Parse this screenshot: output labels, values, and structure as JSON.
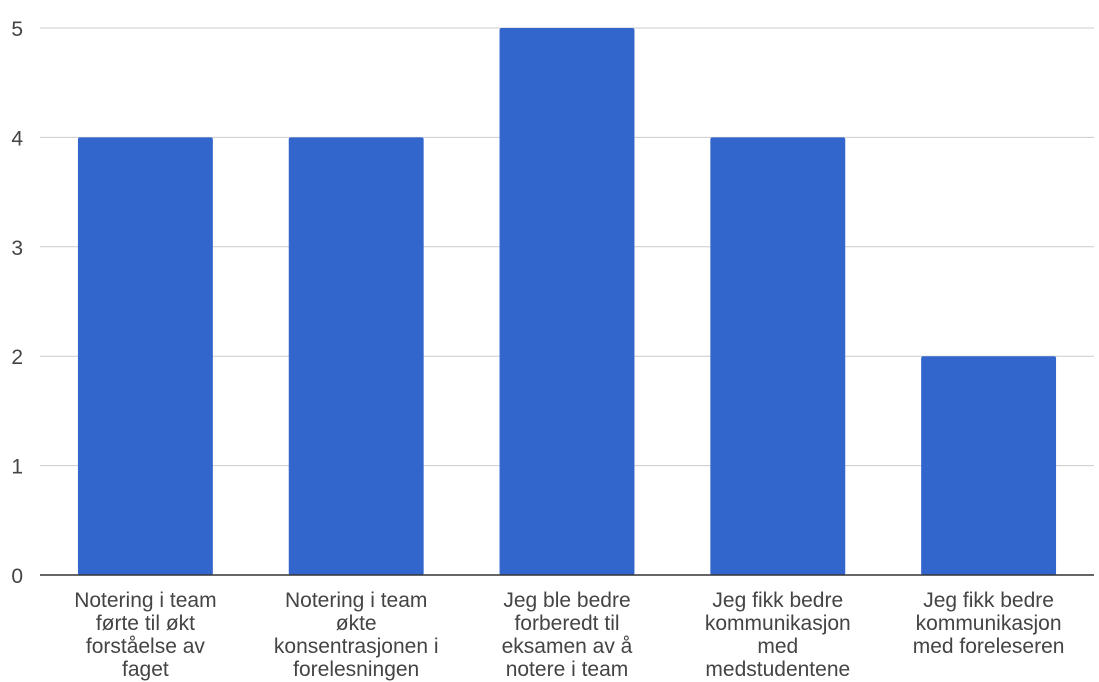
{
  "chart_data": {
    "type": "bar",
    "title": "",
    "xlabel": "",
    "ylabel": "",
    "ylim": [
      0,
      5
    ],
    "yticks": [
      0,
      1,
      2,
      3,
      4,
      5
    ],
    "grid": true,
    "legend": "none",
    "categories": [
      [
        "Notering i team",
        "førte til økt",
        "forståelse av",
        "faget"
      ],
      [
        "Notering i team",
        "økte",
        "konsentrasjonen i",
        "forelesningen"
      ],
      [
        "Jeg ble bedre",
        "forberedt til",
        "eksamen av å",
        "notere i team"
      ],
      [
        "Jeg fikk bedre",
        "kommunikasjon",
        "med",
        "medstudentene"
      ],
      [
        "Jeg fikk bedre",
        "kommunikasjon",
        "med foreleseren"
      ]
    ],
    "values": [
      4,
      4,
      5,
      4,
      2
    ],
    "colors": {
      "bar": "#3366cc",
      "grid": "#cccccc",
      "axis": "#333333",
      "text": "#444444"
    }
  }
}
